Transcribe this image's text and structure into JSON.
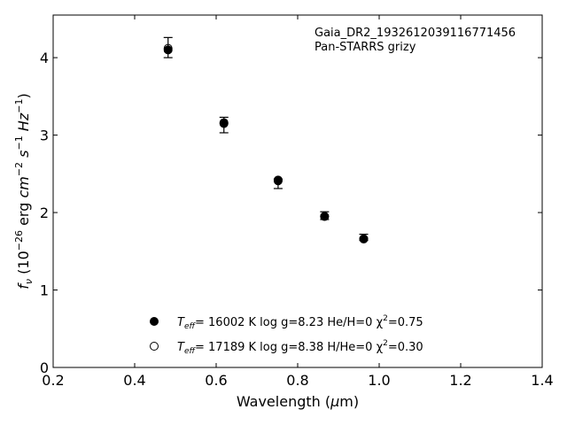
{
  "chart_data": {
    "type": "scatter",
    "xlabel": "Wavelength (μm)",
    "ylabel": "f_ν (10^-26 erg cm^-2 s^-1 Hz^-1)",
    "xlim": [
      0.2,
      1.4
    ],
    "ylim": [
      0,
      4.55
    ],
    "x_ticks": [
      0.2,
      0.4,
      0.6,
      0.8,
      1.0,
      1.2,
      1.4
    ],
    "x_tick_labels": [
      "0.2",
      "0.4",
      "0.6",
      "0.8",
      "1.0",
      "1.2",
      "1.4"
    ],
    "y_ticks": [
      0,
      1,
      2,
      3,
      4
    ],
    "y_tick_labels": [
      "0",
      "1",
      "2",
      "3",
      "4"
    ],
    "grid": false,
    "annotations": [
      "Gaia_DR2_1932612039116771456",
      "Pan-STARRS grizy"
    ],
    "observed": {
      "x": [
        0.482,
        0.619,
        0.752,
        0.866,
        0.962
      ],
      "y": [
        4.13,
        3.13,
        2.37,
        1.96,
        1.68
      ],
      "yerr": [
        0.13,
        0.1,
        0.06,
        0.05,
        0.04
      ]
    },
    "series": [
      {
        "name": "T_eff= 16002 K  log g=8.23  He/H=0  χ²=0.75",
        "marker": "filled",
        "x": [
          0.482,
          0.619,
          0.752,
          0.866,
          0.962
        ],
        "y": [
          4.1,
          3.15,
          2.42,
          1.95,
          1.66
        ]
      },
      {
        "name": "T_eff= 17189 K  log g=8.38  H/He=0  χ²=0.30",
        "marker": "open",
        "x": [
          0.482,
          0.619,
          0.752,
          0.866,
          0.962
        ],
        "y": [
          4.12,
          3.16,
          2.41,
          1.95,
          1.66
        ]
      }
    ],
    "legend": [
      {
        "marker": "filled",
        "teff": "= 16002 K  log g=8.23  He/H=0  χ",
        "chi": "=0.75"
      },
      {
        "marker": "open",
        "teff": "= 17189 K  log g=8.38  H/He=0  χ",
        "chi": "=0.30"
      }
    ],
    "legend_position": "lower-center"
  }
}
